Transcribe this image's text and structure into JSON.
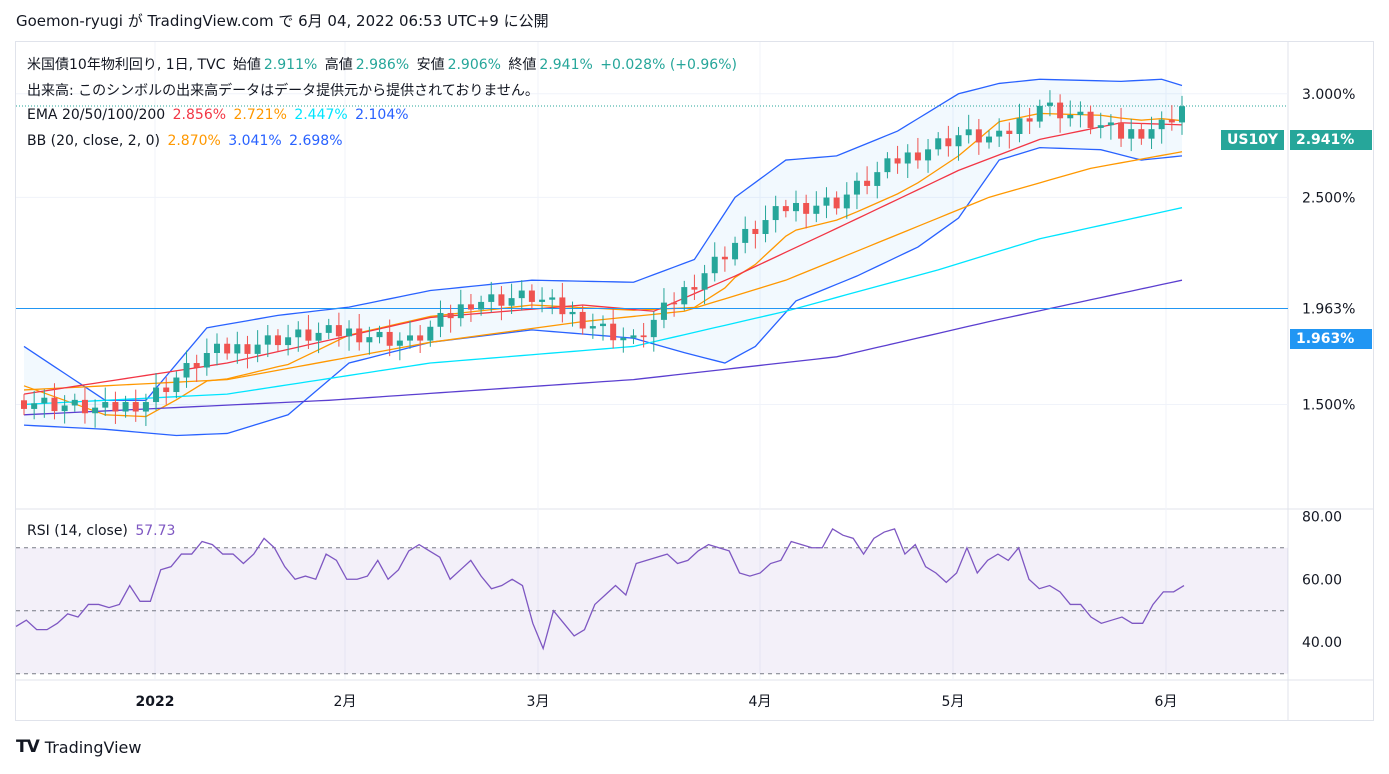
{
  "header": {
    "text": "Goemon-ryugi が TradingView.com で 6月 04, 2022 06:53 UTC+9 に公開"
  },
  "legend": {
    "line1": {
      "prefix": "米国債10年物利回り, 1日, TVC",
      "open_label": "始値",
      "open": "2.911%",
      "high_label": "高値",
      "high": "2.986%",
      "low_label": "安値",
      "low": "2.906%",
      "close_label": "終値",
      "close": "2.941%",
      "change": "+0.028% (+0.96%)"
    },
    "line2": "出来高: このシンボルの出来高データはデータ提供元から提供されておりません。",
    "ema": {
      "label": "EMA 20/50/100/200",
      "v20": "2.856%",
      "v50": "2.721%",
      "v100": "2.447%",
      "v200": "2.104%"
    },
    "bb": {
      "label": "BB (20, close, 2, 0)",
      "basis": "2.870%",
      "upper": "3.041%",
      "lower": "2.698%"
    },
    "rsi": {
      "label": "RSI (14, close)",
      "value": "57.73"
    }
  },
  "tags": {
    "symbol": "US10Y",
    "last": "2.941%",
    "hline": "1.963%"
  },
  "colors": {
    "up": "#26a69a",
    "down": "#ef5350",
    "ema20": "#f23645",
    "ema50": "#ff9800",
    "ema100": "#00e5ff",
    "ema200": "#5b3fd0",
    "bb": "#2962ff",
    "rsi": "#7e57c2",
    "hline": "#2196f3"
  },
  "footer": {
    "brand": "TradingView",
    "logo": "TV"
  },
  "chart_data": {
    "type": "candlestick",
    "y_axis_ticks": [
      "3.000%",
      "2.500%",
      "1.963%",
      "1.500%"
    ],
    "rsi_axis_ticks": [
      "80.00",
      "60.00",
      "40.00"
    ],
    "x_axis_ticks": [
      "2022",
      "2月",
      "3月",
      "4月",
      "5月",
      "6月"
    ],
    "ylim": [
      1.0,
      3.25
    ],
    "rsi_ylim": [
      28,
      82
    ],
    "rsi_bands": [
      70,
      50,
      30
    ],
    "horizontal_line": 1.963,
    "rsi_series": [
      45,
      47,
      44,
      44,
      46,
      49,
      48,
      52,
      52,
      51,
      52,
      58,
      53,
      53,
      63,
      64,
      68,
      68,
      72,
      71,
      68,
      68,
      65,
      68,
      73,
      70,
      64,
      60,
      61,
      60,
      68,
      66,
      60,
      60,
      61,
      66,
      60,
      63,
      69,
      71,
      69,
      67,
      60,
      63,
      66,
      61,
      57,
      58,
      60,
      58,
      46,
      38,
      50,
      46,
      42,
      44,
      52,
      55,
      58,
      55,
      65,
      66,
      67,
      68,
      65,
      66,
      69,
      71,
      70,
      69,
      62,
      61,
      62,
      65,
      66,
      72,
      71,
      70,
      70,
      76,
      74,
      73,
      68,
      73,
      75,
      76,
      68,
      71,
      64,
      62,
      59,
      62,
      70,
      62,
      66,
      68,
      66,
      70,
      60,
      57,
      58,
      56,
      52,
      52,
      48,
      46,
      47,
      48,
      46,
      46,
      52,
      56,
      56,
      58
    ]
  }
}
